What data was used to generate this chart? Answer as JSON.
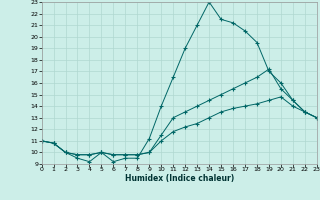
{
  "xlabel": "Humidex (Indice chaleur)",
  "bg_color": "#cceee8",
  "grid_color": "#b0d8d0",
  "line_color": "#006666",
  "xlim": [
    0,
    23
  ],
  "ylim": [
    9,
    23
  ],
  "xticks": [
    0,
    1,
    2,
    3,
    4,
    5,
    6,
    7,
    8,
    9,
    10,
    11,
    12,
    13,
    14,
    15,
    16,
    17,
    18,
    19,
    20,
    21,
    22,
    23
  ],
  "yticks": [
    9,
    10,
    11,
    12,
    13,
    14,
    15,
    16,
    17,
    18,
    19,
    20,
    21,
    22,
    23
  ],
  "series1_x": [
    0,
    1,
    2,
    3,
    4,
    5,
    6,
    7,
    8,
    9,
    10,
    11,
    12,
    13,
    14,
    15,
    16,
    17,
    18,
    19,
    20,
    21,
    22,
    23
  ],
  "series1_y": [
    11.0,
    10.8,
    10.0,
    9.5,
    9.2,
    10.0,
    9.2,
    9.5,
    9.5,
    11.2,
    14.0,
    16.5,
    19.0,
    21.0,
    23.0,
    21.5,
    21.2,
    20.5,
    19.5,
    17.0,
    16.0,
    14.5,
    13.5,
    13.0
  ],
  "series2_x": [
    0,
    1,
    2,
    3,
    4,
    5,
    6,
    7,
    8,
    9,
    10,
    11,
    12,
    13,
    14,
    15,
    16,
    17,
    18,
    19,
    20,
    21,
    22,
    23
  ],
  "series2_y": [
    11.0,
    10.8,
    10.0,
    9.8,
    9.8,
    10.0,
    9.8,
    9.8,
    9.8,
    10.0,
    11.5,
    13.0,
    13.5,
    14.0,
    14.5,
    15.0,
    15.5,
    16.0,
    16.5,
    17.2,
    15.5,
    14.5,
    13.5,
    13.0
  ],
  "series3_x": [
    0,
    1,
    2,
    3,
    4,
    5,
    6,
    7,
    8,
    9,
    10,
    11,
    12,
    13,
    14,
    15,
    16,
    17,
    18,
    19,
    20,
    21,
    22,
    23
  ],
  "series3_y": [
    11.0,
    10.8,
    10.0,
    9.8,
    9.8,
    10.0,
    9.8,
    9.8,
    9.8,
    10.0,
    11.0,
    11.8,
    12.2,
    12.5,
    13.0,
    13.5,
    13.8,
    14.0,
    14.2,
    14.5,
    14.8,
    14.0,
    13.5,
    13.0
  ]
}
